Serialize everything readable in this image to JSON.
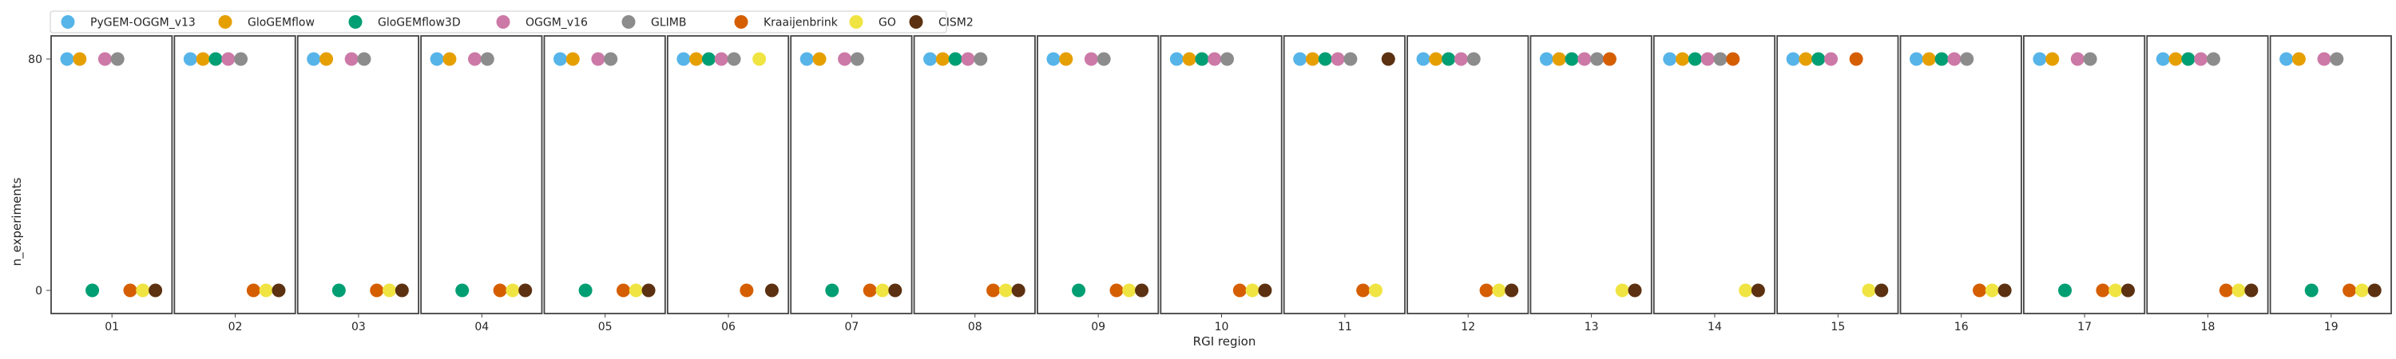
{
  "chart_data": {
    "type": "scatter",
    "ylabel": "n_experiments",
    "xlabel": "RGI region",
    "yticks": [
      0,
      80
    ],
    "ylim": [
      -8,
      88
    ],
    "categories": [
      "01",
      "02",
      "03",
      "04",
      "05",
      "06",
      "07",
      "08",
      "09",
      "10",
      "11",
      "12",
      "13",
      "14",
      "15",
      "16",
      "17",
      "18",
      "19"
    ],
    "legend_position": "top-left",
    "series": [
      {
        "name": "PyGEM-OGGM_v13",
        "color": "#56b4e9",
        "values": [
          80,
          80,
          80,
          80,
          80,
          80,
          80,
          80,
          80,
          80,
          80,
          80,
          80,
          80,
          80,
          80,
          80,
          80,
          80
        ]
      },
      {
        "name": "GloGEMflow",
        "color": "#e69f00",
        "values": [
          80,
          80,
          80,
          80,
          80,
          80,
          80,
          80,
          80,
          80,
          80,
          80,
          80,
          80,
          80,
          80,
          80,
          80,
          80
        ]
      },
      {
        "name": "GloGEMflow3D",
        "color": "#009e73",
        "values": [
          0,
          80,
          0,
          0,
          0,
          80,
          0,
          80,
          0,
          80,
          80,
          80,
          80,
          80,
          80,
          80,
          0,
          80,
          0
        ]
      },
      {
        "name": "OGGM_v16",
        "color": "#cc79a7",
        "values": [
          80,
          80,
          80,
          80,
          80,
          80,
          80,
          80,
          80,
          80,
          80,
          80,
          80,
          80,
          80,
          80,
          80,
          80,
          80
        ]
      },
      {
        "name": "GLIMB",
        "color": "#8c8c8c",
        "values": [
          80,
          80,
          80,
          80,
          80,
          80,
          80,
          80,
          80,
          80,
          80,
          80,
          80,
          80,
          null,
          80,
          80,
          80,
          80
        ]
      },
      {
        "name": "Kraaijenbrink",
        "color": "#d55e00",
        "values": [
          0,
          0,
          0,
          0,
          0,
          0,
          0,
          0,
          0,
          0,
          0,
          0,
          80,
          80,
          80,
          0,
          0,
          0,
          0
        ]
      },
      {
        "name": "GO",
        "color": "#f0e442",
        "values": [
          0,
          0,
          0,
          0,
          0,
          80,
          0,
          0,
          0,
          0,
          0,
          0,
          0,
          0,
          0,
          0,
          0,
          0,
          0
        ]
      },
      {
        "name": "CISM2",
        "color": "#5c3111",
        "values": [
          0,
          0,
          0,
          0,
          0,
          0,
          0,
          0,
          0,
          0,
          80,
          0,
          0,
          0,
          0,
          0,
          0,
          0,
          0
        ]
      }
    ]
  }
}
